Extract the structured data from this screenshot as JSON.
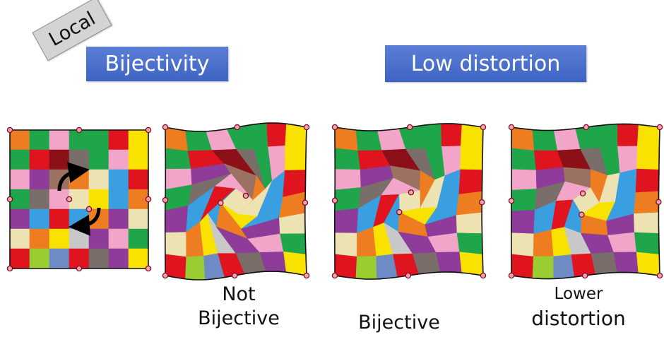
{
  "tag": "Local",
  "titles": {
    "left": "Bijectivity",
    "right": "Low distortion"
  },
  "captions": {
    "not_bijective": "Not\nBijective",
    "bijective": "Bijective",
    "lower_1": "Lower",
    "lower_2": "distortion"
  },
  "palette": {
    "R": "#e0141e",
    "O": "#ee7d22",
    "Y": "#f9e200",
    "G": "#1fa64a",
    "B": "#3a9fe0",
    "P": "#8e3b9a",
    "K": "#f2a5c9",
    "T": "#ede2b1",
    "D": "#8b1017",
    "M": "#9b7261",
    "L": "#9acd32",
    "S": "#6e8bc6",
    "E": "#7a6e6a",
    "C": "#c8c8c8"
  },
  "grid_colors": [
    [
      "O",
      "G",
      "K",
      "G",
      "G",
      "R",
      "Y"
    ],
    [
      "G",
      "R",
      "D",
      "E",
      "G",
      "K",
      "Y"
    ],
    [
      "K",
      "P",
      "M",
      "O",
      "T",
      "B",
      "R"
    ],
    [
      "G",
      "E",
      "K",
      "T",
      "Y",
      "B",
      "O"
    ],
    [
      "P",
      "B",
      "R",
      "B",
      "O",
      "P",
      "T"
    ],
    [
      "T",
      "O",
      "Y",
      "C",
      "P",
      "K",
      "G"
    ],
    [
      "R",
      "L",
      "S",
      "R",
      "E",
      "P",
      "Y"
    ]
  ],
  "arrow_color": "#000000",
  "vertex_marker_color": "#f4a0b5"
}
